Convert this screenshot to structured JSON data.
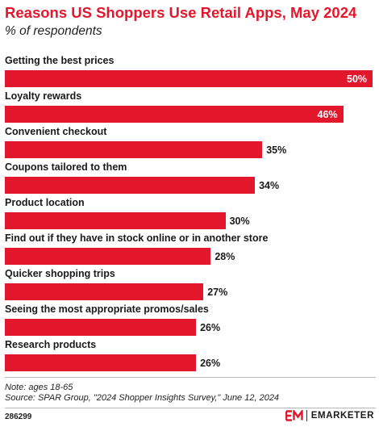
{
  "header": {
    "title": "Reasons US Shoppers Use Retail Apps, May 2024",
    "subtitle": "% of respondents"
  },
  "chart_data": {
    "type": "bar",
    "orientation": "horizontal",
    "title": "Reasons US Shoppers Use Retail Apps, May 2024",
    "subtitle": "% of respondents",
    "categories": [
      "Getting the best prices",
      "Loyalty rewards",
      "Convenient checkout",
      "Coupons tailored to them",
      "Product location",
      "Find out if they have in stock online or in another store",
      "Quicker shopping trips",
      "Seeing the most appropriate promos/sales",
      "Research products"
    ],
    "values": [
      50,
      46,
      35,
      34,
      30,
      28,
      27,
      26,
      26
    ],
    "value_labels": [
      "50%",
      "46%",
      "35%",
      "34%",
      "30%",
      "28%",
      "27%",
      "26%",
      "26%"
    ],
    "xlim": [
      0,
      50
    ],
    "grid": false,
    "legend": "none",
    "bar_color": "#e3172c"
  },
  "footer": {
    "note": "Note: ages 18-65",
    "source": "Source: SPAR Group, \"2024 Shopper Insights Survey,\" June 12, 2024",
    "chart_id": "286299",
    "brand": "EMARKETER",
    "brand_color": "#e3172c"
  }
}
